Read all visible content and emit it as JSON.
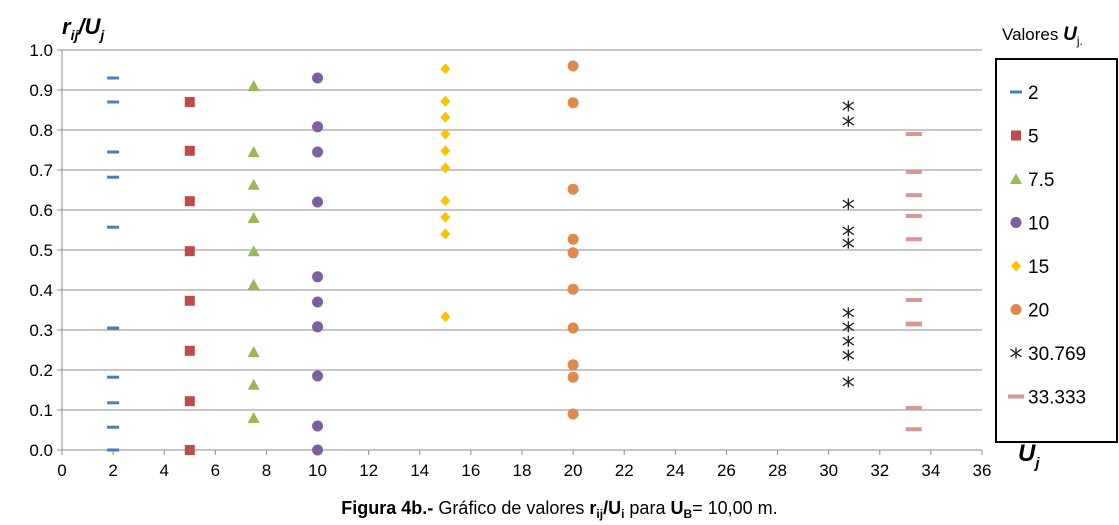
{
  "chart_data": {
    "type": "scatter",
    "ylabel": {
      "base": "r",
      "sub": "ij",
      "sep": "/U",
      "sub2": "j"
    },
    "xlabel": {
      "base": "U",
      "sub": "j"
    },
    "xlim": [
      0,
      36
    ],
    "ylim": [
      0,
      1.0
    ],
    "x_ticks": [
      "0",
      "2",
      "4",
      "6",
      "8",
      "10",
      "12",
      "14",
      "16",
      "18",
      "20",
      "22",
      "24",
      "26",
      "28",
      "30",
      "32",
      "34",
      "36"
    ],
    "y_ticks": [
      "0.0",
      "0.1",
      "0.2",
      "0.3",
      "0.4",
      "0.5",
      "0.6",
      "0.7",
      "0.8",
      "0.9",
      "1.0"
    ],
    "grid": "horizontal",
    "legend": {
      "title": "Valores ",
      "title_var": "U",
      "title_sub": "j.",
      "position": "right"
    },
    "series": [
      {
        "name": "2",
        "marker": "dash",
        "color": "#4A7EBB",
        "x": 2,
        "values": [
          0.93,
          0.87,
          0.745,
          0.682,
          0.557,
          0.305,
          0.182,
          0.118,
          0.057,
          0.0
        ]
      },
      {
        "name": "5",
        "marker": "square",
        "color": "#BE4B48",
        "x": 5,
        "values": [
          0.87,
          0.748,
          0.622,
          0.497,
          0.373,
          0.248,
          0.122,
          0.0
        ]
      },
      {
        "name": "7.5",
        "marker": "triangle",
        "color": "#98B954",
        "x": 7.5,
        "values": [
          0.91,
          0.745,
          0.663,
          0.58,
          0.497,
          0.413,
          0.245,
          0.163,
          0.08
        ]
      },
      {
        "name": "10",
        "marker": "circle",
        "color": "#7D60A0",
        "x": 10,
        "values": [
          0.93,
          0.808,
          0.745,
          0.62,
          0.433,
          0.37,
          0.308,
          0.185,
          0.06,
          0.0
        ]
      },
      {
        "name": "15",
        "marker": "diamond",
        "color": "#FFC000",
        "x": 15,
        "values": [
          0.953,
          0.872,
          0.832,
          0.79,
          0.748,
          0.705,
          0.623,
          0.582,
          0.54,
          0.333
        ]
      },
      {
        "name": "20",
        "marker": "circle",
        "color": "#E0894A",
        "x": 20,
        "values": [
          0.96,
          0.868,
          0.652,
          0.527,
          0.493,
          0.402,
          0.305,
          0.213,
          0.182,
          0.09
        ]
      },
      {
        "name": "30.769",
        "marker": "asterisk",
        "color": "#1F1F1F",
        "x": 30.769,
        "values": [
          0.86,
          0.822,
          0.615,
          0.548,
          0.517,
          0.343,
          0.308,
          0.272,
          0.237,
          0.17
        ]
      },
      {
        "name": "33.333",
        "marker": "dash-thick",
        "color": "#D99694",
        "x": 33.333,
        "values": [
          0.79,
          0.695,
          0.637,
          0.585,
          0.527,
          0.375,
          0.316,
          0.314,
          0.105,
          0.052
        ]
      }
    ]
  },
  "caption": {
    "label": "Figura 4b.-",
    "text1": " Gráfico de valores ",
    "r": "r",
    "r_sub": "ij",
    "slash": "/U",
    "u_sub": "i",
    "text2": " para ",
    "ub": "U",
    "ub_sub": "B",
    "text3": "= 10,00 m."
  }
}
